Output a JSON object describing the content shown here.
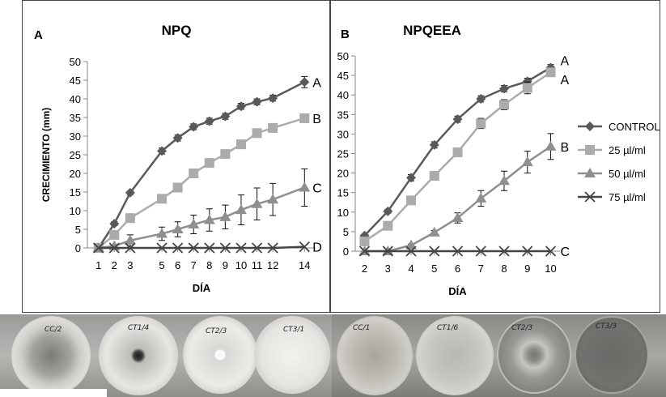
{
  "chart_data": [
    {
      "type": "line",
      "panel_label": "A",
      "title": "NPQ",
      "xlabel": "DÍA",
      "ylabel": "CRECIMIENTO (mm)",
      "ylim": [
        0,
        50
      ],
      "yticks": [
        0,
        5,
        10,
        15,
        20,
        25,
        30,
        35,
        40,
        45,
        50
      ],
      "x_tick_labels": [
        "1",
        "2",
        "3",
        "5",
        "6",
        "7",
        "8",
        "9",
        "10",
        "11",
        "12",
        "14"
      ],
      "x_tick_values": [
        1,
        2,
        3,
        5,
        6,
        7,
        8,
        9,
        10,
        11,
        12,
        14
      ],
      "xlim": [
        0.3,
        14.7
      ],
      "series": [
        {
          "marker": "diamond",
          "color": "#595959",
          "x": [
            1,
            2,
            3,
            5,
            6,
            7,
            8,
            9,
            10,
            11,
            12,
            14
          ],
          "values": [
            0,
            6.5,
            14.8,
            26,
            29.5,
            32.5,
            34,
            35.3,
            38,
            39.2,
            40.2,
            44.5
          ],
          "err": [
            0,
            0.5,
            0.5,
            0.8,
            0.8,
            0.8,
            0.8,
            0.8,
            0.8,
            0.8,
            0.8,
            1.5
          ],
          "end_label": "A"
        },
        {
          "marker": "square",
          "color": "#ababab",
          "x": [
            1,
            2,
            3,
            5,
            6,
            7,
            8,
            9,
            10,
            11,
            12,
            14
          ],
          "values": [
            0,
            3.5,
            8,
            13.2,
            16.2,
            20,
            22.8,
            25.2,
            27.8,
            30.8,
            32.2,
            34.8
          ],
          "err": [
            0,
            0.4,
            0.4,
            0.4,
            0.4,
            0.4,
            0.4,
            0.4,
            0.4,
            0.4,
            0.4,
            0.4
          ],
          "end_label": "B"
        },
        {
          "marker": "triangle",
          "color": "#8f8f8f",
          "x": [
            1,
            2,
            3,
            5,
            6,
            7,
            8,
            9,
            10,
            11,
            12,
            14
          ],
          "values": [
            0,
            0.5,
            2,
            3.8,
            5,
            6.3,
            7.5,
            8.3,
            10.2,
            11.8,
            13,
            16.2
          ],
          "err": [
            0,
            0.3,
            1.5,
            1.8,
            2,
            2.5,
            3,
            3.2,
            4,
            4.3,
            4.3,
            5
          ],
          "end_label": "C"
        },
        {
          "marker": "x",
          "color": "#444444",
          "x": [
            1,
            2,
            3,
            5,
            6,
            7,
            8,
            9,
            10,
            11,
            12,
            14
          ],
          "values": [
            0,
            0,
            0,
            0,
            0,
            0,
            0,
            0,
            0,
            0,
            0,
            0.3
          ],
          "err": [
            0,
            0,
            0,
            0,
            0,
            0,
            0,
            0,
            0,
            0,
            0,
            0
          ],
          "end_label": "D"
        }
      ]
    },
    {
      "type": "line",
      "panel_label": "B",
      "title": "NPQEEA",
      "xlabel": "DÍA",
      "ylabel": "",
      "ylim": [
        0,
        50
      ],
      "yticks": [
        0,
        5,
        10,
        15,
        20,
        25,
        30,
        35,
        40,
        45,
        50
      ],
      "x_tick_labels": [
        "2",
        "3",
        "4",
        "5",
        "6",
        "7",
        "8",
        "9",
        "10"
      ],
      "x_tick_values": [
        2,
        3,
        4,
        5,
        6,
        7,
        8,
        9,
        10
      ],
      "xlim": [
        1.6,
        10.4
      ],
      "series": [
        {
          "name": "CONTROL",
          "marker": "diamond",
          "color": "#595959",
          "x": [
            2,
            3,
            4,
            5,
            6,
            7,
            8,
            9,
            10
          ],
          "values": [
            4,
            10.2,
            18.8,
            27.2,
            33.8,
            39,
            41.6,
            43.5,
            47
          ],
          "err": [
            0.3,
            0.5,
            0.8,
            0.8,
            0.8,
            0.8,
            0.8,
            0.8,
            0.8
          ],
          "end_label": "A"
        },
        {
          "name": "25 µl/ml",
          "marker": "square",
          "color": "#ababab",
          "x": [
            2,
            3,
            4,
            5,
            6,
            7,
            8,
            9,
            10
          ],
          "values": [
            2.5,
            6.5,
            13,
            19.3,
            25.3,
            32.7,
            37.5,
            41.8,
            45.8
          ],
          "err": [
            0.3,
            0.4,
            0.5,
            0.5,
            0.5,
            1.3,
            1.3,
            1.5,
            0.8
          ],
          "end_label": "A"
        },
        {
          "name": "50 µl/ml",
          "marker": "triangle",
          "color": "#8f8f8f",
          "x": [
            2,
            3,
            4,
            5,
            6,
            7,
            8,
            9,
            10
          ],
          "values": [
            0,
            0,
            1.5,
            4.8,
            8.5,
            13.5,
            18,
            22.8,
            26.8
          ],
          "err": [
            0,
            0,
            0.3,
            0.5,
            1.3,
            2,
            2.5,
            2.8,
            3.3
          ],
          "end_label": "B"
        },
        {
          "name": "75 µl/ml",
          "marker": "x",
          "color": "#444444",
          "x": [
            2,
            3,
            4,
            5,
            6,
            7,
            8,
            9,
            10
          ],
          "values": [
            0,
            0,
            0,
            0,
            0,
            0,
            0,
            0,
            0
          ],
          "err": [
            0,
            0,
            0,
            0,
            0,
            0,
            0,
            0,
            0
          ],
          "end_label": "C"
        }
      ]
    }
  ],
  "photos": {
    "left_labels": [
      "CC/2",
      "CT1/4",
      "CT2/3",
      "CT3/1"
    ],
    "right_labels": [
      "CC/1",
      "CT1/6",
      "CT2/3",
      "CT3/3"
    ]
  }
}
